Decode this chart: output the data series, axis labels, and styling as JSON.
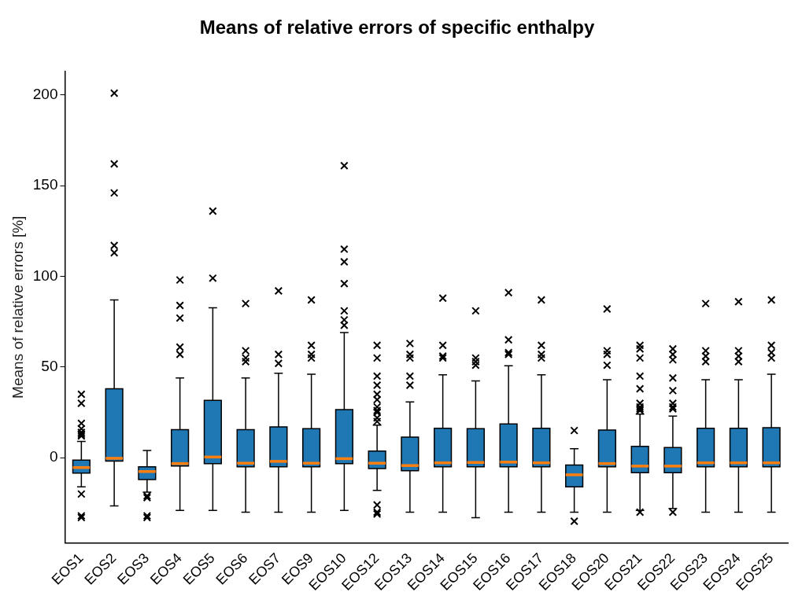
{
  "chart_data": {
    "type": "box",
    "title": "Means of relative errors of specific enthalpy",
    "ylabel": "Means of relative errors [%]",
    "categories": [
      "EOS1",
      "EOS2",
      "EOS3",
      "EOS4",
      "EOS5",
      "EOS6",
      "EOS7",
      "EOS9",
      "EOS10",
      "EOS12",
      "EOS13",
      "EOS14",
      "EOS15",
      "EOS16",
      "EOS17",
      "EOS18",
      "EOS20",
      "EOS21",
      "EOS22",
      "EOS23",
      "EOS24",
      "EOS25"
    ],
    "color": "#1f77b4",
    "ylim": [
      -47,
      213
    ],
    "yticks": [
      0,
      50,
      100,
      150,
      200
    ],
    "grid": false,
    "legend": false,
    "marker": "cross",
    "boxes": [
      {
        "low": -16,
        "q1": -8.5,
        "median": -5.4,
        "q3": -1.3,
        "high": 9,
        "outliers": [
          35,
          30,
          19,
          16,
          14,
          13,
          12,
          -20,
          -32,
          -33
        ]
      },
      {
        "low": -26.5,
        "q1": -1.8,
        "median": -0.3,
        "q3": 38,
        "high": 87,
        "outliers": [
          201,
          162,
          146,
          117,
          113
        ]
      },
      {
        "low": -19,
        "q1": -12,
        "median": -7.6,
        "q3": -5,
        "high": 4,
        "outliers": [
          -21,
          -22,
          -32,
          -33
        ]
      },
      {
        "low": -29,
        "q1": -4.5,
        "median": -3.2,
        "q3": 15.5,
        "high": 44,
        "outliers": [
          98,
          84,
          77,
          61,
          57
        ]
      },
      {
        "low": -29,
        "q1": -3.2,
        "median": 0.4,
        "q3": 31.6,
        "high": 82.7,
        "outliers": [
          136,
          99
        ]
      },
      {
        "low": -30,
        "q1": -5,
        "median": -3,
        "q3": 15.5,
        "high": 44,
        "outliers": [
          85,
          59,
          55,
          53
        ]
      },
      {
        "low": -30,
        "q1": -5,
        "median": -2,
        "q3": 17,
        "high": 46.6,
        "outliers": [
          92,
          57,
          52
        ]
      },
      {
        "low": -30,
        "q1": -5,
        "median": -3,
        "q3": 16,
        "high": 46,
        "outliers": [
          87,
          62,
          57,
          55
        ]
      },
      {
        "low": -29,
        "q1": -3.2,
        "median": -0.5,
        "q3": 26.6,
        "high": 69,
        "outliers": [
          161,
          115,
          108,
          96,
          81,
          76,
          73
        ]
      },
      {
        "low": -18,
        "q1": -6,
        "median": -3,
        "q3": 3.7,
        "high": 18,
        "outliers": [
          62,
          55,
          45,
          40,
          35,
          32,
          28,
          26,
          25,
          22,
          20,
          -26,
          -30,
          -31
        ]
      },
      {
        "low": -30,
        "q1": -7.2,
        "median": -4.3,
        "q3": 11.4,
        "high": 30.8,
        "outliers": [
          63,
          57,
          55,
          45,
          40
        ]
      },
      {
        "low": -30,
        "q1": -5,
        "median": -2.8,
        "q3": 16.3,
        "high": 45.7,
        "outliers": [
          88,
          62,
          56,
          55
        ]
      },
      {
        "low": -33,
        "q1": -5,
        "median": -2.6,
        "q3": 16,
        "high": 42.4,
        "outliers": [
          81,
          55,
          53,
          51
        ]
      },
      {
        "low": -30,
        "q1": -5,
        "median": -2.4,
        "q3": 18.6,
        "high": 50.7,
        "outliers": [
          91,
          65,
          58,
          57
        ]
      },
      {
        "low": -30,
        "q1": -5,
        "median": -2.8,
        "q3": 16.3,
        "high": 45.7,
        "outliers": [
          87,
          62,
          57,
          55
        ]
      },
      {
        "low": -30,
        "q1": -16,
        "median": -9.4,
        "q3": -4,
        "high": 5,
        "outliers": [
          15,
          -35
        ]
      },
      {
        "low": -30,
        "q1": -5,
        "median": -3.2,
        "q3": 15.3,
        "high": 43,
        "outliers": [
          82,
          59,
          57,
          51
        ]
      },
      {
        "low": -29,
        "q1": -8.2,
        "median": -4.6,
        "q3": 6.3,
        "high": 24,
        "outliers": [
          62,
          60,
          55,
          45,
          38,
          30,
          28,
          27,
          26,
          -30
        ]
      },
      {
        "low": -28,
        "q1": -8.2,
        "median": -4.6,
        "q3": 5.6,
        "high": 23,
        "outliers": [
          60,
          57,
          54,
          44,
          37,
          30,
          28,
          27,
          -30
        ]
      },
      {
        "low": -30,
        "q1": -5,
        "median": -2.8,
        "q3": 16.3,
        "high": 43,
        "outliers": [
          85,
          59,
          56,
          53
        ]
      },
      {
        "low": -30,
        "q1": -5,
        "median": -2.8,
        "q3": 16.3,
        "high": 43,
        "outliers": [
          86,
          59,
          56,
          53
        ]
      },
      {
        "low": -30,
        "q1": -5,
        "median": -2.8,
        "q3": 16.6,
        "high": 46,
        "outliers": [
          87,
          62,
          58,
          55
        ]
      }
    ]
  }
}
